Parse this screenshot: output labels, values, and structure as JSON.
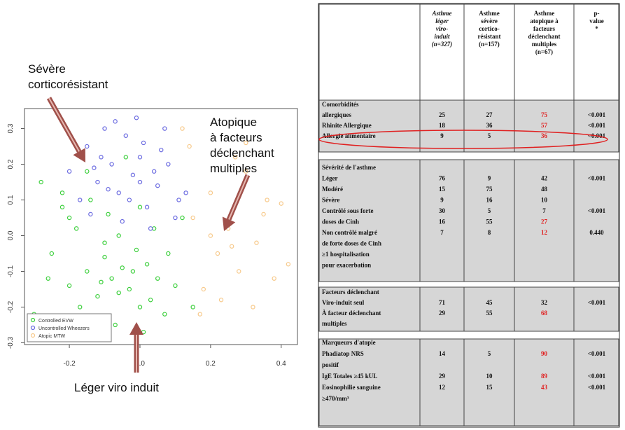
{
  "chart_data": {
    "type": "scatter",
    "xlim": [
      -0.327,
      0.446
    ],
    "ylim": [
      -0.305,
      0.356
    ],
    "xticks": [
      -0.2,
      {
        "value": 0,
        "label": "0.0"
      },
      0.2,
      0.4
    ],
    "yticks": [
      0.3,
      0.2,
      0.1,
      {
        "value": 0,
        "label": "0.0"
      },
      -0.1,
      -0.2,
      -0.3
    ],
    "legend": "lower left",
    "series": [
      {
        "name": "Controlled EVW",
        "color": "#3ccf3c",
        "x": [
          -0.28,
          -0.25,
          -0.22,
          -0.2,
          -0.18,
          -0.15,
          -0.12,
          -0.1,
          -0.08,
          -0.05,
          -0.03,
          0,
          0.02,
          0.05,
          0.08,
          -0.26,
          -0.2,
          -0.14,
          -0.1,
          -0.06,
          -0.02,
          0.03,
          0.07,
          0.1,
          -0.17,
          -0.12,
          -0.07,
          -0.01,
          0.04,
          -0.22,
          -0.15,
          -0.09,
          -0.04,
          0.01,
          0.12,
          -0.3,
          0.15,
          -0.11,
          -0.06,
          0
        ],
        "values": [
          0.15,
          -0.05,
          0.08,
          -0.14,
          0.02,
          -0.1,
          -0.17,
          -0.06,
          -0.12,
          -0.09,
          -0.15,
          -0.2,
          -0.08,
          -0.12,
          -0.05,
          -0.12,
          0.05,
          0.1,
          -0.02,
          0,
          -0.1,
          -0.18,
          -0.22,
          -0.14,
          -0.2,
          -0.24,
          -0.25,
          -0.04,
          0.02,
          0.12,
          0.18,
          0.06,
          0.22,
          -0.27,
          0.05,
          -0.22,
          -0.2,
          -0.13,
          -0.16,
          0.08
        ]
      },
      {
        "name": "Uncontrolled Wheezers",
        "color": "#6a6ae0",
        "x": [
          -0.2,
          -0.17,
          -0.15,
          -0.12,
          -0.1,
          -0.08,
          -0.06,
          -0.04,
          -0.02,
          0,
          0.02,
          0.05,
          0.08,
          0.1,
          0.13,
          -0.14,
          -0.11,
          -0.07,
          -0.03,
          0.01,
          0.04,
          0.07,
          -0.09,
          -0.05,
          0,
          0.06,
          -0.13,
          -0.01,
          0.11,
          0.03
        ],
        "values": [
          0.18,
          0.1,
          0.25,
          0.15,
          0.3,
          0.2,
          0.12,
          0.28,
          0.17,
          0.22,
          0.08,
          0.14,
          0.2,
          0.05,
          0.12,
          0.06,
          0.22,
          0.32,
          0.1,
          0.26,
          0.18,
          0.3,
          0.13,
          0.04,
          0.15,
          0.24,
          0.19,
          0.33,
          0.1,
          0.02
        ]
      },
      {
        "name": "Atopic MTW",
        "color": "#f7c98a",
        "x": [
          0.12,
          0.15,
          0.18,
          0.2,
          0.22,
          0.25,
          0.28,
          0.3,
          0.33,
          0.35,
          0.38,
          0.4,
          0.17,
          0.23,
          0.27,
          0.32,
          0.36,
          0.42,
          0.14,
          0.26,
          0.3,
          0.2
        ],
        "values": [
          0.3,
          0.05,
          -0.15,
          0.12,
          -0.05,
          0.02,
          -0.1,
          0.18,
          -0.02,
          0.06,
          -0.12,
          0.09,
          -0.22,
          -0.18,
          0.22,
          -0.2,
          0.1,
          -0.08,
          0.25,
          -0.03,
          0.26,
          0
        ]
      }
    ],
    "annotations": [
      {
        "text": [
          "Sévère",
          "corticorésistant"
        ]
      },
      {
        "text": [
          "Atopique",
          "à facteurs",
          " déclenchant",
          "multiples"
        ]
      },
      {
        "text": [
          "Léger viro induit"
        ]
      }
    ]
  },
  "table": {
    "header": [
      [
        "Asthme",
        "léger",
        "viro-",
        "induit",
        "(n=327)"
      ],
      [
        "Asthme",
        "sévère",
        "cortico-",
        "résistant",
        "(n=157)"
      ],
      [
        "Asthme",
        "atopique à",
        "facteurs",
        "déclenchant",
        "multiples",
        "(n=67)"
      ],
      [
        "p-",
        "value",
        "*"
      ]
    ],
    "sections": [
      {
        "rows": [
          {
            "label": "Comorbidités"
          },
          {
            "label": "allergiques",
            "cells": [
              "25",
              "27",
              {
                "text": "75",
                "color": "#e02020"
              },
              "<0.001"
            ]
          },
          {
            "label": "Rhinite Allergique",
            "cells": [
              "18",
              "36",
              {
                "text": "57",
                "color": "#e02020"
              },
              "<0.001"
            ]
          },
          {
            "label": "Allergie alimentaire",
            "cells": [
              "9",
              "5",
              {
                "text": "36",
                "color": "#e02020"
              },
              "<0.001"
            ]
          }
        ]
      },
      {
        "rows": [
          {
            "label": "Sévérité de l'asthme"
          },
          {
            "label": "Léger",
            "cells": [
              "76",
              "9",
              "42",
              "<0.001"
            ]
          },
          {
            "label": "Modéré",
            "cells": [
              "15",
              "75",
              "48"
            ]
          },
          {
            "label": "Sévère",
            "cells": [
              "9",
              "16",
              "10"
            ]
          },
          {
            "label": "Contrôlé sous forte",
            "cells": [
              "30",
              "5",
              "7",
              "<0.001"
            ]
          },
          {
            "label": "doses de Cinh",
            "cells": [
              "16",
              "55",
              {
                "text": "27",
                "color": "#e02020"
              }
            ]
          },
          {
            "label": "Non contrôlé malgré",
            "cells": [
              "7",
              "8",
              {
                "text": "12",
                "color": "#e02020"
              },
              "0.440"
            ]
          },
          {
            "label": "de forte doses de Cinh"
          },
          {
            "label": "≥1 hospitalisation"
          },
          {
            "label": "pour exacerbation"
          }
        ]
      },
      {
        "rows": [
          {
            "label": "Facteurs déclenchant"
          },
          {
            "label": "Viro-induit seul",
            "cells": [
              "71",
              "45",
              "32",
              "<0.001"
            ]
          },
          {
            "label": "À facteur déclenchant",
            "cells": [
              "29",
              "55",
              {
                "text": "68",
                "color": "#e02020"
              }
            ]
          },
          {
            "label": "multiples"
          }
        ]
      },
      {
        "rows": [
          {
            "label": "Marqueurs d'atopie"
          },
          {
            "label": "Phadiatop NRS",
            "cells": [
              "14",
              "5",
              {
                "text": "90",
                "color": "#e02020"
              },
              "<0.001"
            ]
          },
          {
            "label": "positif"
          },
          {
            "label": "IgE Totales ≥45 kUL",
            "cells": [
              "29",
              "10",
              {
                "text": "89",
                "color": "#e02020"
              },
              "<0.001"
            ]
          },
          {
            "label": "Eosinophilie sanguine",
            "cells": [
              "12",
              "15",
              {
                "text": "43",
                "color": "#e02020"
              },
              "<0.001"
            ]
          },
          {
            "label": "≥470/mm³"
          }
        ]
      }
    ]
  }
}
